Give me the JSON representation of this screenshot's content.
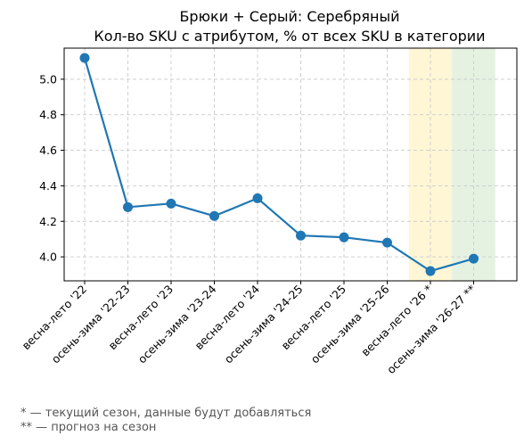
{
  "chart_data": {
    "type": "line",
    "title": "Брюки + Серый: Серебряный",
    "subtitle": "Кол-во SKU с атрибутом, % от всех SKU в категории",
    "xlabel": "",
    "ylabel": "",
    "categories": [
      "весна-лето '22",
      "осень-зима '22-23",
      "весна-лето '23",
      "осень-зима '23-24",
      "весна-лето '24",
      "осень-зима '24-25",
      "весна-лето '25",
      "осень-зима '25-26",
      "весна-лето '26 *",
      "осень-зима '26-27 **"
    ],
    "values": [
      5.12,
      4.28,
      4.3,
      4.23,
      4.33,
      4.12,
      4.11,
      4.08,
      3.92,
      3.99
    ],
    "ylim": [
      3.865,
      5.175
    ],
    "yticks": [
      4.0,
      4.2,
      4.4,
      4.6,
      4.8,
      5.0
    ],
    "ytick_labels": [
      "4.0",
      "4.2",
      "4.4",
      "4.6",
      "4.8",
      "5.0"
    ],
    "grid": true,
    "highlight_bands": [
      {
        "category": "весна-лето '26 *",
        "color": "#fff6d5"
      },
      {
        "category": "осень-зима '26-27 **",
        "color": "#e5f2e2"
      }
    ],
    "line_color": "#1f77b4"
  },
  "footnotes": [
    "* — текущий сезон, данные будут добавляться",
    "** — прогноз на сезон"
  ]
}
